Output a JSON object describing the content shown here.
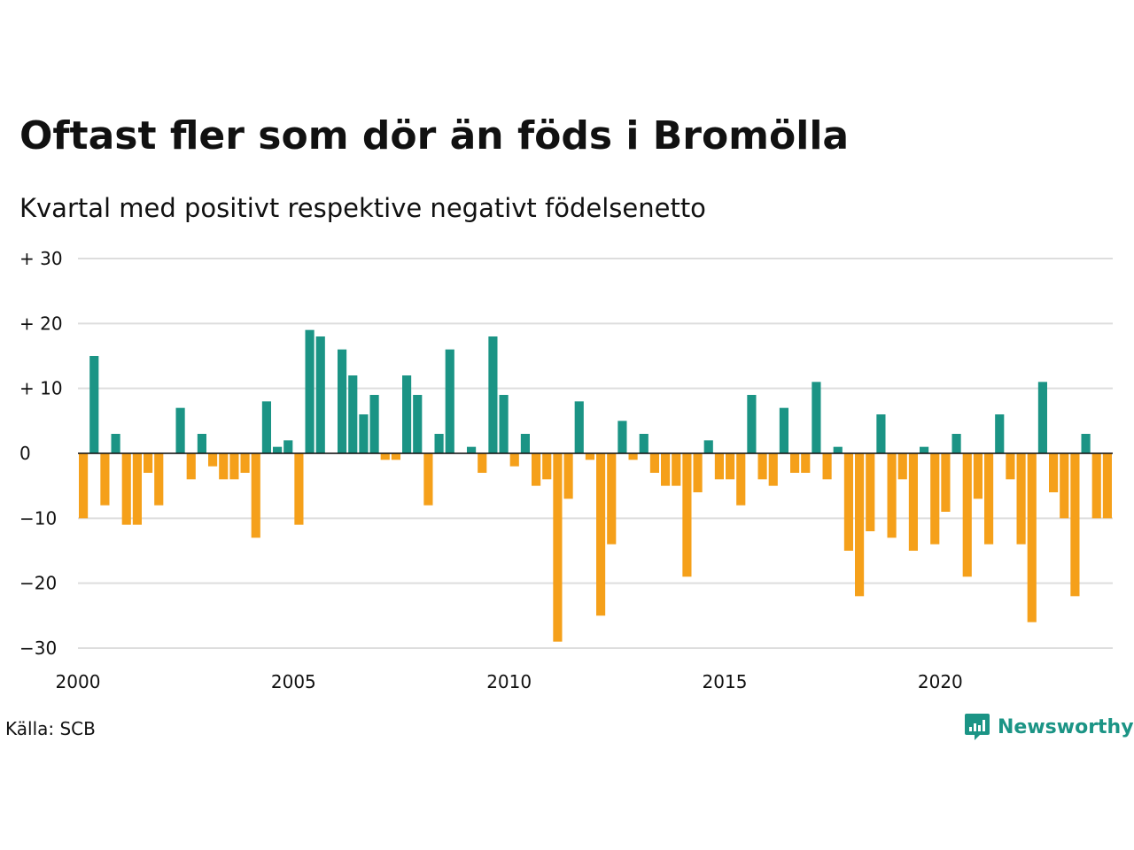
{
  "title": "Oftast fler som dör än föds i Bromölla",
  "subtitle": "Kvartal med positivt respektive negativt födelsenetto",
  "source": "Källa: SCB",
  "brand": {
    "name": "Newsworthy",
    "icon": "newsworthy-logo-icon",
    "color": "#1b9485"
  },
  "colors": {
    "positive": "#1b9485",
    "negative": "#f5a01a",
    "grid": "#dddddd"
  },
  "chart_data": {
    "type": "bar",
    "x_start": "2000 Q1",
    "x_step": "quarter",
    "yticks": [
      {
        "value": 30,
        "label": "+ 30"
      },
      {
        "value": 20,
        "label": "+ 20"
      },
      {
        "value": 10,
        "label": "+ 10"
      },
      {
        "value": 0,
        "label": "0"
      },
      {
        "value": -10,
        "label": "−10"
      },
      {
        "value": -20,
        "label": "−20"
      },
      {
        "value": -30,
        "label": "−30"
      }
    ],
    "xticks": [
      "2000",
      "2005",
      "2010",
      "2015",
      "2020"
    ],
    "ylim": [
      -30,
      30
    ],
    "grid": true,
    "values": [
      -10,
      15,
      -8,
      3,
      -11,
      -11,
      -3,
      -8,
      0,
      7,
      -4,
      3,
      -2,
      -4,
      -4,
      -3,
      -13,
      8,
      1,
      2,
      -11,
      19,
      18,
      0,
      16,
      12,
      6,
      9,
      -1,
      -1,
      12,
      9,
      -8,
      3,
      16,
      0,
      1,
      -3,
      18,
      9,
      -2,
      3,
      -5,
      -4,
      -29,
      -7,
      8,
      -1,
      -25,
      -14,
      5,
      -1,
      3,
      -3,
      -5,
      -5,
      -19,
      -6,
      2,
      -4,
      -4,
      -8,
      9,
      -4,
      -5,
      7,
      -3,
      -3,
      11,
      -4,
      1,
      -15,
      -22,
      -12,
      6,
      -13,
      -4,
      -15,
      1,
      -14,
      -9,
      3,
      -19,
      -7,
      -14,
      6,
      -4,
      -14,
      -26,
      11,
      -6,
      -10,
      -22,
      3,
      -10,
      -10
    ]
  }
}
